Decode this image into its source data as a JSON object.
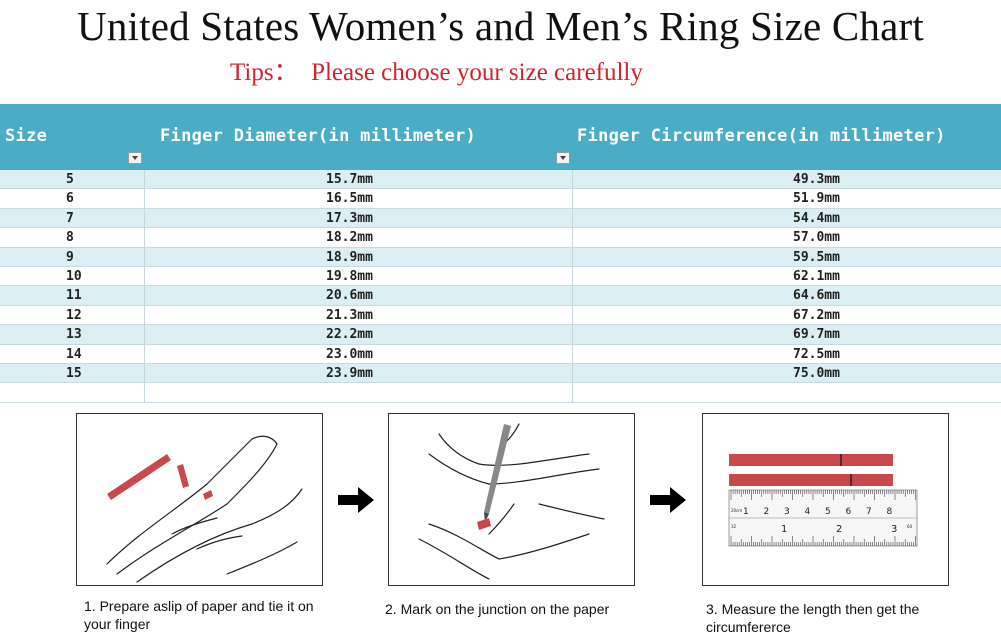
{
  "title": "United States Women’s and Men’s Ring Size Chart",
  "tips": "Tips：  Please choose your size carefully",
  "table": {
    "headers": [
      "Size",
      "Finger Diameter(in millimeter)",
      "Finger Circumference(in millimeter)"
    ],
    "rows": [
      [
        "5",
        "15.7mm",
        "49.3mm"
      ],
      [
        "6",
        "16.5mm",
        "51.9mm"
      ],
      [
        "7",
        "17.3mm",
        "54.4mm"
      ],
      [
        "8",
        "18.2mm",
        "57.0mm"
      ],
      [
        "9",
        "18.9mm",
        "59.5mm"
      ],
      [
        "10",
        "19.8mm",
        "62.1mm"
      ],
      [
        "11",
        "20.6mm",
        "64.6mm"
      ],
      [
        "12",
        "21.3mm",
        "67.2mm"
      ],
      [
        "13",
        "22.2mm",
        "69.7mm"
      ],
      [
        "14",
        "23.0mm",
        "72.5mm"
      ],
      [
        "15",
        "23.9mm",
        "75.0mm"
      ]
    ]
  },
  "steps": [
    "1. Prepare aslip of paper and tie it on your finger",
    "2. Mark on the junction on the paper",
    "3. Measure the length then get the circumfererce"
  ],
  "ruler": {
    "top_numbers": [
      "1",
      "2",
      "3",
      "4",
      "5",
      "6",
      "7",
      "8"
    ],
    "bottom_numbers": [
      "1",
      "2",
      "3"
    ],
    "small_labels": [
      "20cm",
      "32",
      "64"
    ]
  },
  "colors": {
    "header": "#4bacc6",
    "row_alt": "#daeef3",
    "tips": "#d2232a",
    "paper_strip": "#c8484c"
  }
}
